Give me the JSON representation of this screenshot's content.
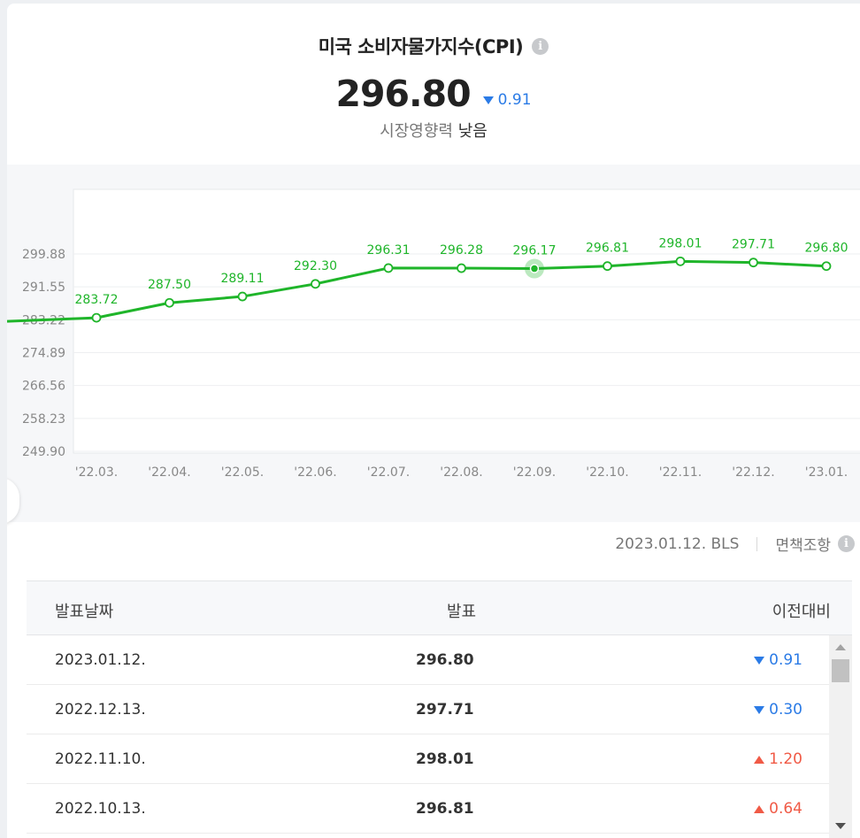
{
  "header": {
    "title": "미국 소비자물가지수(CPI)",
    "info_icon": "info-icon",
    "value": "296.80",
    "change": "0.91",
    "change_direction": "down",
    "impact_label": "시장영향력",
    "impact_level": "낮음"
  },
  "colors": {
    "line": "#1fb52a",
    "down": "#2b7be6",
    "up": "#f05a46"
  },
  "chart_data": {
    "type": "line",
    "categories": [
      "'22.03.",
      "'22.04.",
      "'22.05.",
      "'22.06.",
      "'22.07.",
      "'22.08.",
      "'22.09.",
      "'22.10.",
      "'22.11.",
      "'22.12.",
      "'23.01."
    ],
    "series": [
      {
        "values": [
          283.72,
          287.5,
          289.11,
          292.3,
          296.31,
          296.28,
          296.17,
          296.81,
          298.01,
          297.71,
          296.8
        ],
        "labels": [
          "283.72",
          "287.50",
          "289.11",
          "292.30",
          "296.31",
          "296.28",
          "296.17",
          "296.81",
          "298.01",
          "297.71",
          "296.80"
        ]
      }
    ],
    "y_ticks": [
      "299.88",
      "291.55",
      "283.22",
      "274.89",
      "266.56",
      "258.23",
      "249.90"
    ],
    "ylim": [
      249.9,
      299.88
    ],
    "highlighted_category": "'22.09.",
    "grid": true
  },
  "source": {
    "text": "2023.01.12. BLS",
    "disclaimer": "면책조항"
  },
  "table": {
    "headers": [
      "발표날짜",
      "발표",
      "이전대비"
    ],
    "rows": [
      {
        "date": "2023.01.12.",
        "value": "296.80",
        "change": "0.91",
        "direction": "down"
      },
      {
        "date": "2022.12.13.",
        "value": "297.71",
        "change": "0.30",
        "direction": "down"
      },
      {
        "date": "2022.11.10.",
        "value": "298.01",
        "change": "1.20",
        "direction": "up"
      },
      {
        "date": "2022.10.13.",
        "value": "296.81",
        "change": "0.64",
        "direction": "up"
      }
    ]
  }
}
